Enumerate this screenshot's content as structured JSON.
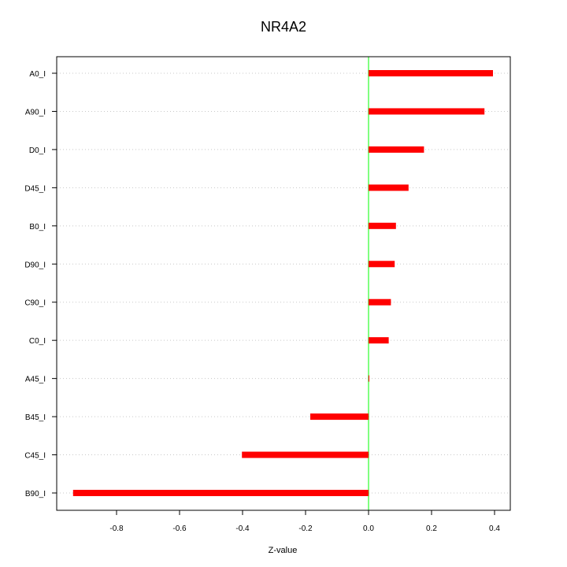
{
  "chart_data": {
    "type": "bar",
    "orientation": "horizontal",
    "title": "NR4A2",
    "xlabel": "Z-value",
    "ylabel": "",
    "categories": [
      "A0_I",
      "A90_I",
      "D0_I",
      "D45_I",
      "B0_I",
      "D90_I",
      "C90_I",
      "C0_I",
      "A45_I",
      "B45_I",
      "C45_I",
      "B90_I"
    ],
    "values": [
      0.395,
      0.368,
      0.176,
      0.127,
      0.087,
      0.083,
      0.071,
      0.064,
      0.002,
      -0.185,
      -0.402,
      -0.938
    ],
    "xlim": [
      -0.99,
      0.45
    ],
    "xticks": [
      -0.8,
      -0.6,
      -0.4,
      -0.2,
      0.0,
      0.2,
      0.4
    ],
    "xtick_labels": [
      "-0.8",
      "-0.6",
      "-0.4",
      "-0.2",
      "0.0",
      "0.2",
      "0.4"
    ],
    "zero_line": 0.0,
    "grid": "horizontal dotted",
    "colors": {
      "bar": "#ff0000",
      "zero_line": "#00ff00",
      "grid": "#c8c8c8",
      "axis": "#000000"
    }
  }
}
